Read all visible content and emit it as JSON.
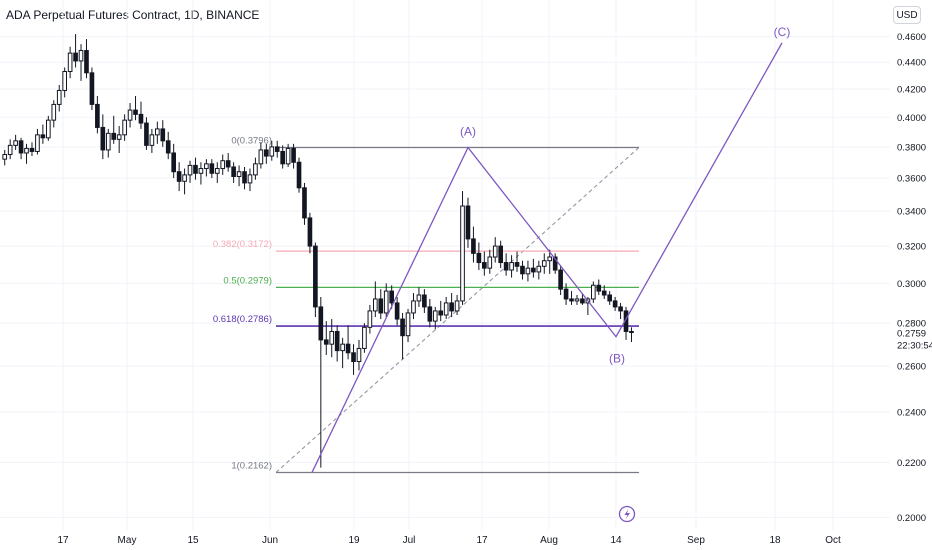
{
  "header": {
    "title": "ADA Perpetual Futures Contract, 1D, BINANCE",
    "currency_button": "USD"
  },
  "colors": {
    "up_candle": "#ffffff",
    "down_candle": "#131722",
    "wave_line": "#7e57c2",
    "fib_0": "#787b86",
    "fib_0382": "#f7a9b6",
    "fib_05": "#4caf50",
    "fib_0618": "#5e35b1",
    "fib_1": "#787b86",
    "trend_dashed": "#9598a1"
  },
  "chart_data": {
    "type": "candlestick",
    "title": "ADA Perpetual Futures Contract, 1D, BINANCE",
    "y_scale": "log",
    "ylim": [
      0.193,
      0.48
    ],
    "y_ticks": [
      "0.4600",
      "0.4400",
      "0.4200",
      "0.4000",
      "0.3800",
      "0.3600",
      "0.3400",
      "0.3200",
      "0.3000",
      "0.2800",
      "0.2600",
      "0.2400",
      "0.2200",
      "0.2000"
    ],
    "x_ticks": [
      "17",
      "May",
      "15",
      "Jun",
      "19",
      "Jul",
      "17",
      "Aug",
      "14",
      "Sep",
      "18",
      "Oct"
    ],
    "last_price": "0.2759",
    "countdown": "22:30:54",
    "candles": [
      [
        0.372,
        0.378,
        0.368,
        0.375
      ],
      [
        0.375,
        0.385,
        0.372,
        0.381
      ],
      [
        0.381,
        0.388,
        0.378,
        0.384
      ],
      [
        0.384,
        0.386,
        0.372,
        0.376
      ],
      [
        0.376,
        0.382,
        0.369,
        0.379
      ],
      [
        0.379,
        0.383,
        0.374,
        0.377
      ],
      [
        0.377,
        0.392,
        0.375,
        0.388
      ],
      [
        0.388,
        0.395,
        0.382,
        0.386
      ],
      [
        0.386,
        0.401,
        0.384,
        0.398
      ],
      [
        0.398,
        0.412,
        0.393,
        0.409
      ],
      [
        0.409,
        0.423,
        0.404,
        0.419
      ],
      [
        0.419,
        0.436,
        0.414,
        0.433
      ],
      [
        0.433,
        0.452,
        0.428,
        0.447
      ],
      [
        0.447,
        0.462,
        0.436,
        0.441
      ],
      [
        0.441,
        0.454,
        0.426,
        0.449
      ],
      [
        0.449,
        0.458,
        0.428,
        0.432
      ],
      [
        0.432,
        0.436,
        0.405,
        0.409
      ],
      [
        0.409,
        0.415,
        0.389,
        0.393
      ],
      [
        0.393,
        0.402,
        0.372,
        0.378
      ],
      [
        0.378,
        0.392,
        0.373,
        0.389
      ],
      [
        0.389,
        0.401,
        0.382,
        0.385
      ],
      [
        0.385,
        0.394,
        0.376,
        0.388
      ],
      [
        0.388,
        0.402,
        0.384,
        0.398
      ],
      [
        0.398,
        0.41,
        0.393,
        0.405
      ],
      [
        0.405,
        0.415,
        0.398,
        0.402
      ],
      [
        0.402,
        0.411,
        0.392,
        0.396
      ],
      [
        0.396,
        0.4,
        0.378,
        0.381
      ],
      [
        0.381,
        0.392,
        0.376,
        0.388
      ],
      [
        0.388,
        0.397,
        0.382,
        0.392
      ],
      [
        0.392,
        0.398,
        0.38,
        0.384
      ],
      [
        0.384,
        0.39,
        0.372,
        0.376
      ],
      [
        0.376,
        0.382,
        0.36,
        0.364
      ],
      [
        0.364,
        0.37,
        0.352,
        0.358
      ],
      [
        0.358,
        0.366,
        0.35,
        0.362
      ],
      [
        0.362,
        0.371,
        0.357,
        0.368
      ],
      [
        0.368,
        0.373,
        0.359,
        0.363
      ],
      [
        0.363,
        0.37,
        0.356,
        0.366
      ],
      [
        0.366,
        0.372,
        0.361,
        0.369
      ],
      [
        0.369,
        0.372,
        0.36,
        0.363
      ],
      [
        0.363,
        0.37,
        0.357,
        0.366
      ],
      [
        0.366,
        0.375,
        0.362,
        0.371
      ],
      [
        0.371,
        0.376,
        0.364,
        0.367
      ],
      [
        0.367,
        0.37,
        0.357,
        0.361
      ],
      [
        0.361,
        0.368,
        0.355,
        0.364
      ],
      [
        0.364,
        0.367,
        0.353,
        0.357
      ],
      [
        0.357,
        0.366,
        0.352,
        0.362
      ],
      [
        0.362,
        0.373,
        0.359,
        0.369
      ],
      [
        0.369,
        0.383,
        0.366,
        0.378
      ],
      [
        0.378,
        0.382,
        0.369,
        0.374
      ],
      [
        0.374,
        0.384,
        0.371,
        0.38
      ],
      [
        0.38,
        0.384,
        0.373,
        0.377
      ],
      [
        0.377,
        0.381,
        0.366,
        0.369
      ],
      [
        0.369,
        0.382,
        0.367,
        0.379
      ],
      [
        0.379,
        0.382,
        0.366,
        0.37
      ],
      [
        0.37,
        0.373,
        0.351,
        0.354
      ],
      [
        0.354,
        0.357,
        0.332,
        0.336
      ],
      [
        0.336,
        0.339,
        0.316,
        0.32
      ],
      [
        0.32,
        0.322,
        0.283,
        0.288
      ],
      [
        0.288,
        0.293,
        0.218,
        0.272
      ],
      [
        0.272,
        0.281,
        0.265,
        0.27
      ],
      [
        0.27,
        0.282,
        0.264,
        0.276
      ],
      [
        0.276,
        0.279,
        0.262,
        0.267
      ],
      [
        0.267,
        0.273,
        0.259,
        0.27
      ],
      [
        0.27,
        0.279,
        0.263,
        0.266
      ],
      [
        0.266,
        0.27,
        0.256,
        0.262
      ],
      [
        0.262,
        0.272,
        0.258,
        0.268
      ],
      [
        0.268,
        0.28,
        0.266,
        0.278
      ],
      [
        0.278,
        0.289,
        0.275,
        0.286
      ],
      [
        0.286,
        0.301,
        0.283,
        0.292
      ],
      [
        0.292,
        0.297,
        0.282,
        0.285
      ],
      [
        0.285,
        0.3,
        0.283,
        0.296
      ],
      [
        0.296,
        0.299,
        0.287,
        0.29
      ],
      [
        0.29,
        0.293,
        0.279,
        0.282
      ],
      [
        0.282,
        0.285,
        0.263,
        0.274
      ],
      [
        0.274,
        0.287,
        0.271,
        0.285
      ],
      [
        0.285,
        0.295,
        0.282,
        0.291
      ],
      [
        0.291,
        0.298,
        0.288,
        0.294
      ],
      [
        0.294,
        0.297,
        0.285,
        0.288
      ],
      [
        0.288,
        0.292,
        0.278,
        0.281
      ],
      [
        0.281,
        0.288,
        0.277,
        0.286
      ],
      [
        0.286,
        0.291,
        0.281,
        0.284
      ],
      [
        0.284,
        0.293,
        0.282,
        0.29
      ],
      [
        0.29,
        0.295,
        0.283,
        0.286
      ],
      [
        0.286,
        0.294,
        0.284,
        0.291
      ],
      [
        0.291,
        0.352,
        0.289,
        0.343
      ],
      [
        0.343,
        0.348,
        0.319,
        0.324
      ],
      [
        0.324,
        0.331,
        0.311,
        0.316
      ],
      [
        0.316,
        0.322,
        0.307,
        0.311
      ],
      [
        0.311,
        0.317,
        0.304,
        0.308
      ],
      [
        0.308,
        0.318,
        0.305,
        0.314
      ],
      [
        0.314,
        0.325,
        0.311,
        0.32
      ],
      [
        0.32,
        0.323,
        0.308,
        0.311
      ],
      [
        0.311,
        0.316,
        0.304,
        0.307
      ],
      [
        0.307,
        0.315,
        0.303,
        0.311
      ],
      [
        0.311,
        0.317,
        0.306,
        0.309
      ],
      [
        0.309,
        0.312,
        0.302,
        0.305
      ],
      [
        0.305,
        0.312,
        0.301,
        0.308
      ],
      [
        0.308,
        0.313,
        0.303,
        0.306
      ],
      [
        0.306,
        0.312,
        0.302,
        0.309
      ],
      [
        0.309,
        0.316,
        0.305,
        0.312
      ],
      [
        0.312,
        0.318,
        0.305,
        0.314
      ],
      [
        0.314,
        0.316,
        0.305,
        0.307
      ],
      [
        0.307,
        0.309,
        0.294,
        0.297
      ],
      [
        0.297,
        0.3,
        0.289,
        0.292
      ],
      [
        0.292,
        0.296,
        0.289,
        0.291
      ],
      [
        0.291,
        0.294,
        0.289,
        0.292
      ],
      [
        0.292,
        0.295,
        0.289,
        0.29
      ],
      [
        0.29,
        0.293,
        0.284,
        0.292
      ],
      [
        0.292,
        0.301,
        0.29,
        0.299
      ],
      [
        0.299,
        0.302,
        0.294,
        0.296
      ],
      [
        0.296,
        0.299,
        0.292,
        0.294
      ],
      [
        0.294,
        0.296,
        0.289,
        0.291
      ],
      [
        0.291,
        0.293,
        0.286,
        0.288
      ],
      [
        0.288,
        0.29,
        0.282,
        0.286
      ],
      [
        0.286,
        0.288,
        0.272,
        0.276
      ],
      [
        0.276,
        0.278,
        0.271,
        0.2759
      ]
    ],
    "fibonacci": [
      {
        "label": "0(0.3796)",
        "value": 0.3796
      },
      {
        "label": "0.382(0.3172)",
        "value": 0.3172
      },
      {
        "label": "0.5(0.2979)",
        "value": 0.2979
      },
      {
        "label": "0.618(0.2786)",
        "value": 0.2786
      },
      {
        "label": "1(0.2162)",
        "value": 0.2162
      }
    ],
    "waves": [
      {
        "label": "(A)",
        "value": 0.3796
      },
      {
        "label": "(B)",
        "value": 0.2735
      },
      {
        "label": "(C)",
        "value": 0.455
      }
    ]
  }
}
